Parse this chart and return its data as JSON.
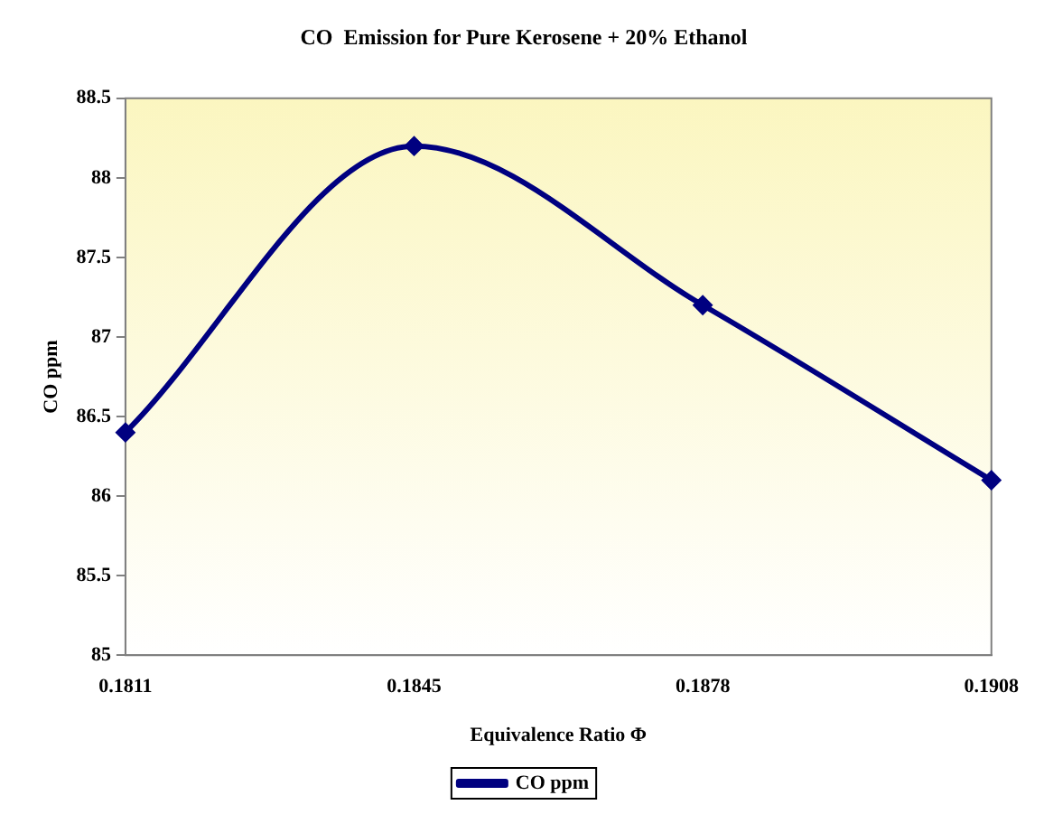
{
  "chart_data": {
    "type": "line",
    "title": "CO  Emission for Pure Kerosene + 20% Ethanol",
    "xlabel": "Equivalence Ratio Φ",
    "ylabel": "CO ppm",
    "categories": [
      "0.1811",
      "0.1845",
      "0.1878",
      "0.1908"
    ],
    "series": [
      {
        "name": "CO ppm",
        "color": "#000080",
        "values": [
          86.4,
          88.2,
          87.2,
          86.1
        ]
      }
    ],
    "ylim": [
      85,
      88.5
    ],
    "yticks": [
      85,
      85.5,
      86,
      86.5,
      87,
      87.5,
      88,
      88.5
    ],
    "grid": false,
    "legend": "bottom",
    "marker": "diamond",
    "line_style": "solid"
  }
}
